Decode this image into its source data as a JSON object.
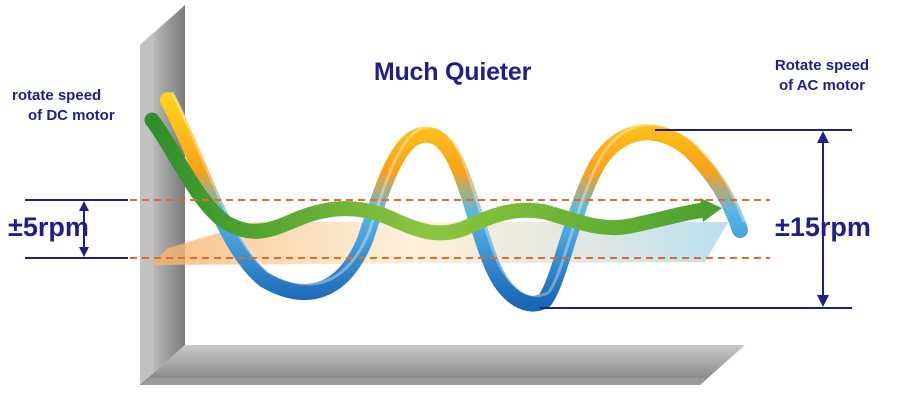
{
  "title": "Much Quieter",
  "dc_label": {
    "line1": "rotate speed",
    "line2": "of DC motor"
  },
  "ac_label": {
    "line1": "Rotate speed",
    "line2": "of AC motor"
  },
  "dc_range": "±5rpm",
  "ac_range": "±15rpm",
  "colors": {
    "text": "#1f1f87",
    "dashed_lines": "#e8672a",
    "ac_wave": "#2b8fd6",
    "dc_wave": "#4aa82a",
    "axis": "#8f8f8f"
  }
}
